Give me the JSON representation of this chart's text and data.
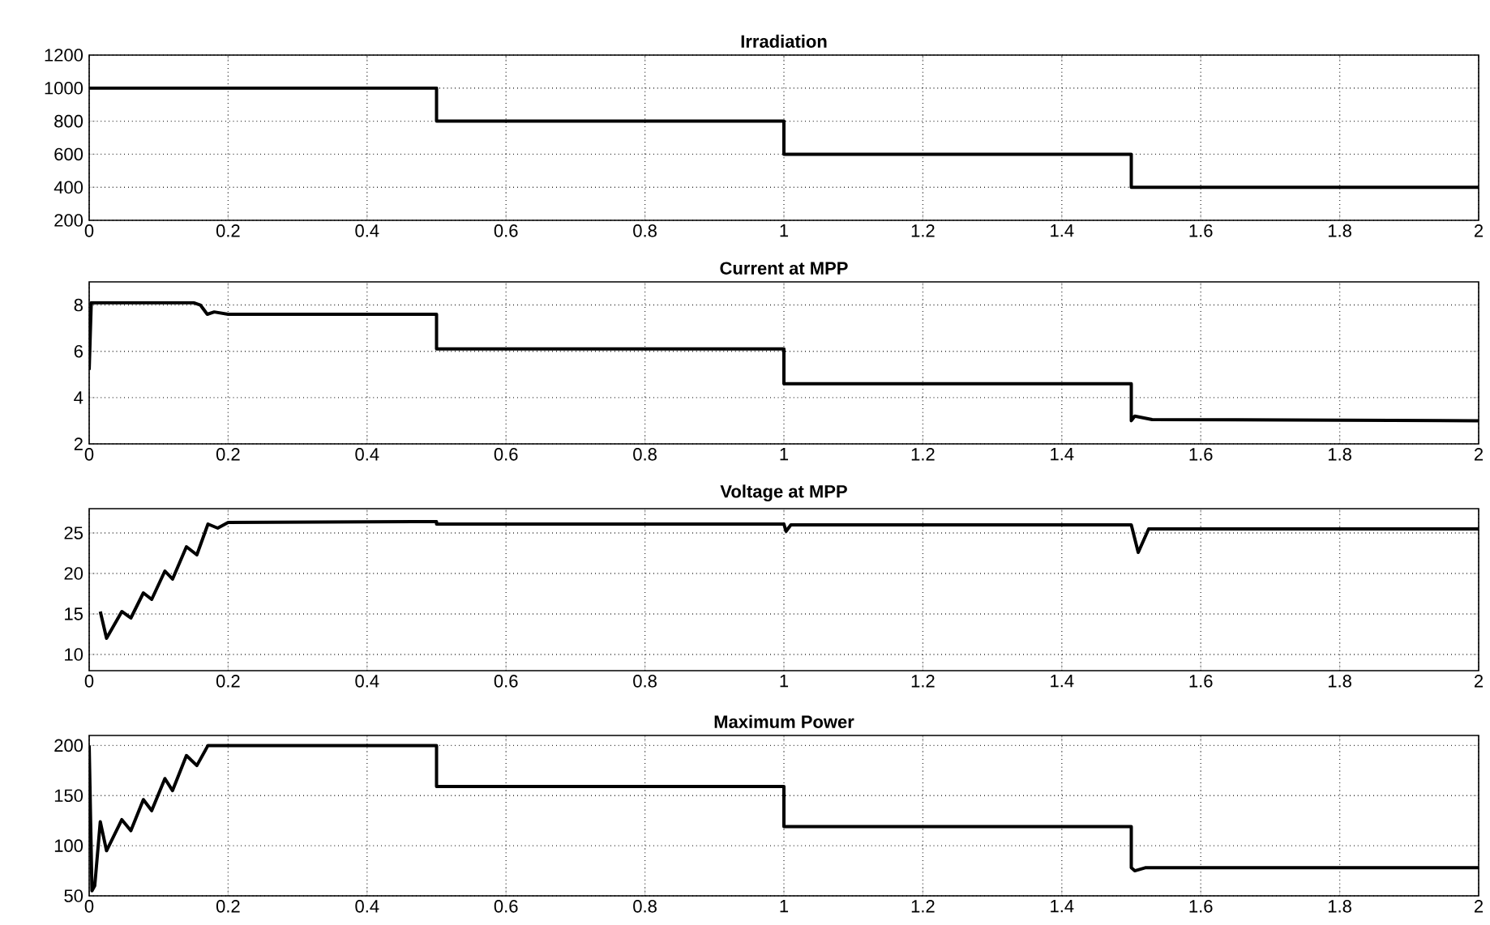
{
  "chart_data": [
    {
      "type": "line",
      "title": "Irradiation",
      "xlim": [
        0,
        2
      ],
      "xticks": [
        0,
        0.2,
        0.4,
        0.6,
        0.8,
        1,
        1.2,
        1.4,
        1.6,
        1.8,
        2
      ],
      "ylim": [
        200,
        1200
      ],
      "yticks": [
        200,
        400,
        600,
        800,
        1000,
        1200
      ],
      "grid": true,
      "series": [
        {
          "color": "#000000",
          "x": [
            0,
            0.5,
            0.5,
            1,
            1,
            1.5,
            1.5,
            2
          ],
          "values": [
            1000,
            1000,
            800,
            800,
            600,
            600,
            400,
            400
          ]
        }
      ]
    },
    {
      "type": "line",
      "title": "Current at MPP",
      "xlim": [
        0,
        2
      ],
      "xticks": [
        0,
        0.2,
        0.4,
        0.6,
        0.8,
        1,
        1.2,
        1.4,
        1.6,
        1.8,
        2
      ],
      "ylim": [
        2,
        9
      ],
      "yticks": [
        2,
        4,
        6,
        8
      ],
      "grid": true,
      "series": [
        {
          "color": "#000000",
          "x": [
            0,
            0.003,
            0.15,
            0.16,
            0.17,
            0.18,
            0.2,
            0.5,
            0.5,
            1,
            1,
            1.5,
            1.5,
            1.505,
            1.53,
            2
          ],
          "values": [
            5.2,
            8.1,
            8.1,
            8.0,
            7.6,
            7.7,
            7.6,
            7.6,
            6.1,
            6.1,
            4.6,
            4.6,
            3.0,
            3.2,
            3.05,
            3.0
          ]
        }
      ]
    },
    {
      "type": "line",
      "title": "Voltage at MPP",
      "xlim": [
        0,
        2
      ],
      "xticks": [
        0,
        0.2,
        0.4,
        0.6,
        0.8,
        1,
        1.2,
        1.4,
        1.6,
        1.8,
        2
      ],
      "ylim": [
        8,
        28
      ],
      "yticks": [
        10,
        15,
        20,
        25
      ],
      "grid": true,
      "series": [
        {
          "color": "#000000",
          "x": [
            0.016,
            0.025,
            0.047,
            0.06,
            0.078,
            0.09,
            0.109,
            0.12,
            0.14,
            0.155,
            0.171,
            0.185,
            0.2,
            0.5,
            0.5,
            1,
            1.003,
            1.01,
            1.5,
            1.51,
            1.525,
            2
          ],
          "values": [
            15.3,
            12,
            15.3,
            14.5,
            17.6,
            16.8,
            20.3,
            19.3,
            23.3,
            22.3,
            26.1,
            25.6,
            26.3,
            26.4,
            26.1,
            26.1,
            25.2,
            26,
            26,
            22.6,
            25.5,
            25.5
          ]
        }
      ]
    },
    {
      "type": "line",
      "title": "Maximum Power",
      "xlim": [
        0,
        2
      ],
      "xticks": [
        0,
        0.2,
        0.4,
        0.6,
        0.8,
        1,
        1.2,
        1.4,
        1.6,
        1.8,
        2
      ],
      "ylim": [
        50,
        210
      ],
      "yticks": [
        50,
        100,
        150,
        200
      ],
      "grid": true,
      "series": [
        {
          "color": "#000000",
          "x": [
            0,
            0.004,
            0.008,
            0.016,
            0.025,
            0.047,
            0.06,
            0.078,
            0.09,
            0.109,
            0.12,
            0.14,
            0.155,
            0.171,
            0.185,
            0.2,
            0.5,
            0.5,
            1,
            1,
            1.5,
            1.5,
            1.505,
            1.52,
            2
          ],
          "values": [
            200,
            55,
            60,
            124,
            95,
            126,
            115,
            146,
            135,
            167,
            155,
            190,
            180,
            200,
            200,
            200,
            200,
            159,
            159,
            119,
            119,
            78,
            75,
            78,
            78
          ]
        }
      ]
    }
  ]
}
